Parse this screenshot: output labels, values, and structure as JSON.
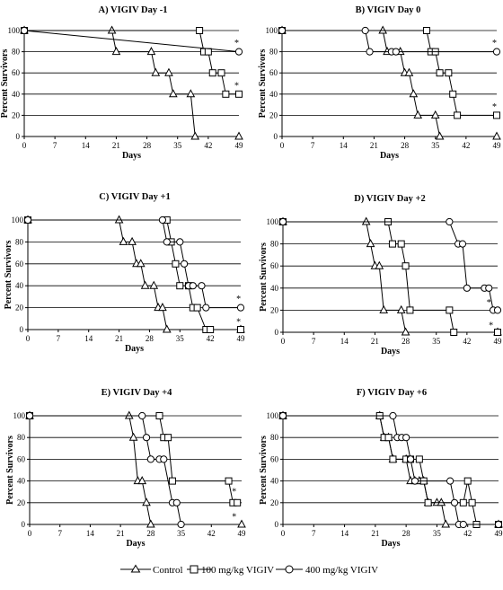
{
  "legend": {
    "items": [
      {
        "label": "Control",
        "marker": "triangle"
      },
      {
        "label": "100 mg/kg VIGIV",
        "marker": "square"
      },
      {
        "label": "400 mg/kg VIGIV",
        "marker": "circle"
      }
    ]
  },
  "chart_data": [
    {
      "type": "line",
      "title": "A) VIGIV Day -1",
      "xlabel": "Days",
      "ylabel": "Percent Survivors",
      "xlim": [
        0,
        49
      ],
      "ylim": [
        0,
        100
      ],
      "xticks": [
        0,
        7,
        14,
        21,
        28,
        35,
        42,
        49
      ],
      "yticks": [
        0,
        20,
        40,
        60,
        80,
        100
      ],
      "grid": "horizontal",
      "series": [
        {
          "name": "Control",
          "marker": "triangle",
          "x": [
            0,
            20,
            21,
            29,
            30,
            33,
            34,
            38,
            39,
            49
          ],
          "y": [
            100,
            100,
            80,
            80,
            60,
            60,
            40,
            40,
            0,
            0
          ]
        },
        {
          "name": "100 mg/kg VIGIV",
          "marker": "square",
          "x": [
            0,
            40,
            41,
            42,
            43,
            45,
            46,
            49
          ],
          "y": [
            100,
            100,
            80,
            80,
            60,
            60,
            40,
            40
          ]
        },
        {
          "name": "400 mg/kg VIGIV",
          "marker": "circle",
          "x": [
            0,
            49
          ],
          "y": [
            100,
            80
          ]
        }
      ],
      "annotations": [
        {
          "text": "*",
          "x": 48.5,
          "y": 88
        },
        {
          "text": "*",
          "x": 48.5,
          "y": 48
        }
      ]
    },
    {
      "type": "line",
      "title": "B) VIGIV Day 0",
      "xlabel": "Days",
      "ylabel": "Percent Survivors",
      "xlim": [
        0,
        49
      ],
      "ylim": [
        0,
        100
      ],
      "xticks": [
        0,
        7,
        14,
        21,
        28,
        35,
        42,
        49
      ],
      "yticks": [
        0,
        20,
        40,
        60,
        80,
        100
      ],
      "grid": "horizontal",
      "series": [
        {
          "name": "Control",
          "marker": "triangle",
          "x": [
            0,
            23,
            24,
            27,
            28,
            29,
            30,
            31,
            35,
            36,
            49
          ],
          "y": [
            100,
            100,
            80,
            80,
            60,
            60,
            40,
            20,
            20,
            0,
            0
          ]
        },
        {
          "name": "100 mg/kg VIGIV",
          "marker": "square",
          "x": [
            0,
            33,
            34,
            35,
            36,
            38,
            39,
            40,
            49
          ],
          "y": [
            100,
            100,
            80,
            80,
            60,
            60,
            40,
            20,
            20
          ]
        },
        {
          "name": "400 mg/kg VIGIV",
          "marker": "circle",
          "x": [
            0,
            19,
            20,
            25,
            26,
            49
          ],
          "y": [
            100,
            100,
            80,
            80,
            80,
            80
          ]
        }
      ],
      "annotations": [
        {
          "text": "*",
          "x": 48.5,
          "y": 88
        },
        {
          "text": "*",
          "x": 48.5,
          "y": 28
        }
      ]
    },
    {
      "type": "line",
      "title": "C) VIGIV Day +1",
      "xlabel": "Days",
      "ylabel": "Percent Survivors",
      "xlim": [
        0,
        49
      ],
      "ylim": [
        0,
        100
      ],
      "xticks": [
        0,
        7,
        14,
        21,
        28,
        35,
        42,
        49
      ],
      "yticks": [
        0,
        20,
        40,
        60,
        80,
        100
      ],
      "grid": "horizontal",
      "series": [
        {
          "name": "Control",
          "marker": "triangle",
          "x": [
            0,
            21,
            22,
            24,
            25,
            26,
            27,
            29,
            30,
            31,
            32,
            49
          ],
          "y": [
            100,
            100,
            80,
            80,
            60,
            60,
            40,
            40,
            20,
            20,
            0,
            0
          ]
        },
        {
          "name": "100 mg/kg VIGIV",
          "marker": "square",
          "x": [
            0,
            32,
            33,
            34,
            35,
            37,
            38,
            39,
            41,
            42,
            49
          ],
          "y": [
            100,
            100,
            80,
            60,
            40,
            40,
            20,
            20,
            0,
            0,
            0
          ]
        },
        {
          "name": "400 mg/kg VIGIV",
          "marker": "circle",
          "x": [
            0,
            31,
            32,
            35,
            36,
            37,
            38,
            40,
            41,
            49
          ],
          "y": [
            100,
            100,
            80,
            80,
            60,
            40,
            40,
            40,
            20,
            20
          ]
        }
      ],
      "annotations": [
        {
          "text": "*",
          "x": 48.5,
          "y": 28
        },
        {
          "text": "*",
          "x": 48.5,
          "y": 7
        }
      ]
    },
    {
      "type": "line",
      "title": "D) VIGIV Day +2",
      "xlabel": "Days",
      "ylabel": "Percent Survivors",
      "xlim": [
        0,
        49
      ],
      "ylim": [
        0,
        100
      ],
      "xticks": [
        0,
        7,
        14,
        21,
        28,
        35,
        42,
        49
      ],
      "yticks": [
        0,
        20,
        40,
        60,
        80,
        100
      ],
      "grid": "horizontal",
      "series": [
        {
          "name": "Control",
          "marker": "triangle",
          "x": [
            0,
            19,
            20,
            21,
            22,
            23,
            27,
            28,
            49
          ],
          "y": [
            100,
            100,
            80,
            60,
            60,
            20,
            20,
            0,
            0
          ]
        },
        {
          "name": "100 mg/kg VIGIV",
          "marker": "square",
          "x": [
            0,
            24,
            25,
            27,
            28,
            29,
            38,
            39,
            49
          ],
          "y": [
            100,
            100,
            80,
            80,
            60,
            20,
            20,
            0,
            0
          ]
        },
        {
          "name": "400 mg/kg VIGIV",
          "marker": "circle",
          "x": [
            0,
            38,
            40,
            41,
            42,
            46,
            47,
            48,
            49
          ],
          "y": [
            100,
            100,
            80,
            80,
            40,
            40,
            40,
            20,
            20
          ]
        }
      ],
      "annotations": [
        {
          "text": "*",
          "x": 47,
          "y": 27
        },
        {
          "text": "*",
          "x": 47.5,
          "y": 6
        }
      ]
    },
    {
      "type": "line",
      "title": "E) VIGIV Day +4",
      "xlabel": "Days",
      "ylabel": "Percent Survivors",
      "xlim": [
        0,
        49
      ],
      "ylim": [
        0,
        100
      ],
      "xticks": [
        0,
        7,
        14,
        21,
        28,
        35,
        42,
        49
      ],
      "yticks": [
        0,
        20,
        40,
        60,
        80,
        100
      ],
      "grid": "horizontal",
      "series": [
        {
          "name": "Control",
          "marker": "triangle",
          "x": [
            0,
            23,
            24,
            25,
            26,
            27,
            28,
            49
          ],
          "y": [
            100,
            100,
            80,
            40,
            40,
            20,
            0,
            0
          ]
        },
        {
          "name": "100 mg/kg VIGIV",
          "marker": "square",
          "x": [
            0,
            30,
            31,
            32,
            33,
            46,
            47,
            48
          ],
          "y": [
            100,
            100,
            80,
            80,
            40,
            40,
            20,
            20
          ]
        },
        {
          "name": "400 mg/kg VIGIV",
          "marker": "circle",
          "x": [
            0,
            26,
            27,
            28,
            30,
            31,
            33,
            34,
            35
          ],
          "y": [
            100,
            100,
            80,
            60,
            60,
            60,
            20,
            20,
            0
          ]
        }
      ],
      "annotations": [
        {
          "text": "*",
          "x": 47.3,
          "y": 30
        },
        {
          "text": "*",
          "x": 47.3,
          "y": 7
        }
      ]
    },
    {
      "type": "line",
      "title": "F) VIGIV Day +6",
      "xlabel": "Days",
      "ylabel": "Percent Survivors",
      "xlim": [
        0,
        49
      ],
      "ylim": [
        0,
        100
      ],
      "xticks": [
        0,
        7,
        14,
        21,
        28,
        35,
        42,
        49
      ],
      "yticks": [
        0,
        20,
        40,
        60,
        80,
        100
      ],
      "grid": "horizontal",
      "series": [
        {
          "name": "Control",
          "marker": "triangle",
          "x": [
            0,
            22,
            23,
            24,
            25,
            28,
            29,
            30,
            31,
            32,
            33,
            35,
            36,
            37,
            49
          ],
          "y": [
            100,
            100,
            80,
            80,
            60,
            60,
            40,
            40,
            40,
            40,
            20,
            20,
            20,
            0,
            0
          ]
        },
        {
          "name": "100 mg/kg VIGIV",
          "marker": "square",
          "x": [
            0,
            22,
            23,
            24,
            25,
            28,
            29,
            31,
            32,
            33,
            41,
            42,
            43,
            44,
            49
          ],
          "y": [
            100,
            100,
            80,
            80,
            60,
            60,
            60,
            60,
            40,
            20,
            20,
            40,
            20,
            0,
            0
          ]
        },
        {
          "name": "400 mg/kg VIGIV",
          "marker": "circle",
          "x": [
            0,
            25,
            26,
            27,
            28,
            29,
            30,
            38,
            39,
            40,
            41,
            49
          ],
          "y": [
            100,
            100,
            80,
            80,
            80,
            60,
            40,
            40,
            20,
            0,
            0,
            0
          ]
        }
      ],
      "annotations": []
    }
  ]
}
